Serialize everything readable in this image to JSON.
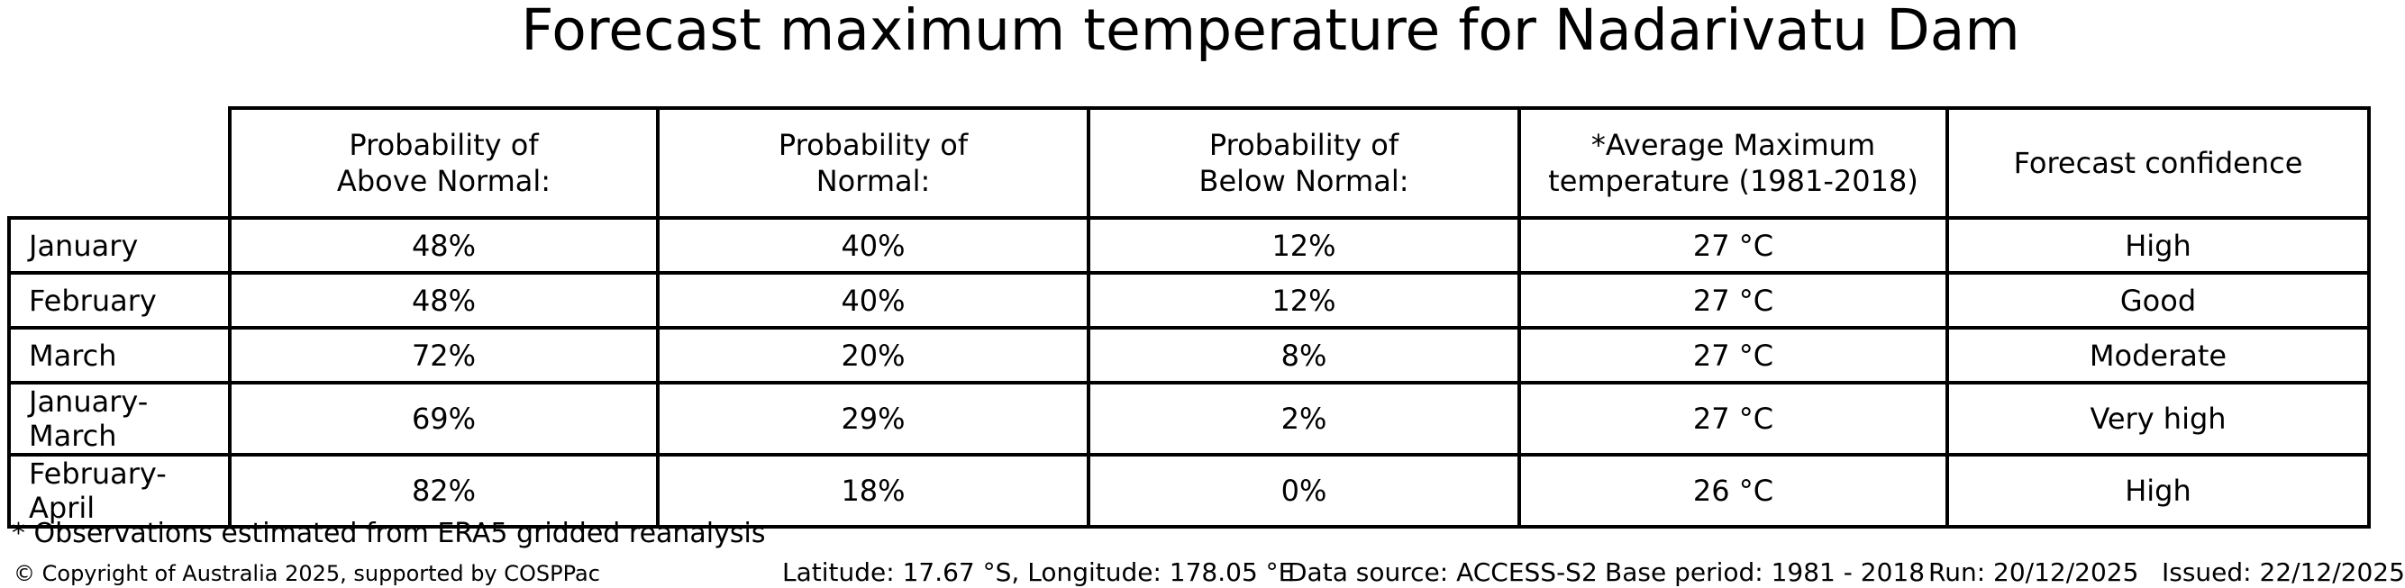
{
  "chart_data": {
    "type": "table",
    "title": "Forecast maximum temperature for Nadarivatu Dam",
    "columns": [
      "Probability of\nAbove Normal:",
      "Probability of\nNormal:",
      "Probability of\nBelow Normal:",
      "*Average Maximum\ntemperature (1981-2018)",
      "Forecast confidence"
    ],
    "row_labels": [
      "January",
      "February",
      "March",
      "January-March",
      "February-April"
    ],
    "rows": [
      [
        "January",
        "48%",
        "40%",
        "12%",
        "27 °C",
        "High"
      ],
      [
        "February",
        "48%",
        "40%",
        "12%",
        "27 °C",
        "Good"
      ],
      [
        "March",
        "72%",
        "20%",
        "8%",
        "27 °C",
        "Moderate"
      ],
      [
        "January-March",
        "69%",
        "29%",
        "2%",
        "27 °C",
        "Very high"
      ],
      [
        "February-April",
        "82%",
        "18%",
        "0%",
        "26 °C",
        "High"
      ]
    ],
    "series": [
      {
        "name": "Probability of Above Normal (%)",
        "values": [
          48,
          48,
          72,
          69,
          82
        ]
      },
      {
        "name": "Probability of Normal (%)",
        "values": [
          40,
          40,
          20,
          29,
          18
        ]
      },
      {
        "name": "Probability of Below Normal (%)",
        "values": [
          12,
          12,
          8,
          2,
          0
        ]
      },
      {
        "name": "Average Maximum temperature 1981-2018 (°C)",
        "values": [
          27,
          27,
          27,
          27,
          26
        ]
      }
    ],
    "forecast_confidence": [
      "High",
      "Good",
      "Moderate",
      "Very high",
      "High"
    ],
    "grid": true,
    "legend_position": "none"
  },
  "footnote": "* Observations estimated from ERA5 gridded reanalysis",
  "footer": {
    "copyright": "© Copyright of Australia 2025, supported by COSPPac",
    "location": "Latitude: 17.67 °S, Longitude: 178.05 °E",
    "data_source": "Data source: ACCESS-S2",
    "base_period": "Base period: 1981 - 2018",
    "run": "Run: 20/12/2025",
    "issued": "Issued: 22/12/2025"
  }
}
